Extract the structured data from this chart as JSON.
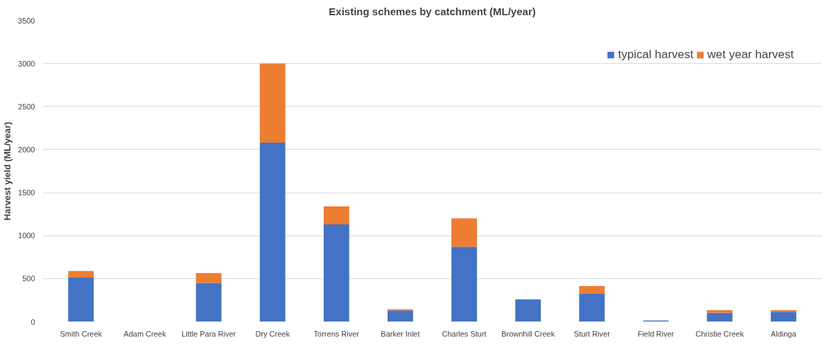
{
  "chart_data": {
    "type": "bar",
    "stacked": true,
    "title": "Existing schemes by catchment (ML/year)",
    "ylabel": "Harvest yield (ML/year)",
    "categories": [
      "Smith Creek",
      "Adam Creek",
      "Little Para River",
      "Dry Creek",
      "Torrens River",
      "Barker Inlet",
      "Charles Sturt",
      "Brownhill Creek",
      "Sturt River",
      "Field River",
      "Christie Creek",
      "Aldinga"
    ],
    "series": [
      {
        "name": "typical harvest",
        "color": "#4472c4",
        "values": [
          510,
          0,
          450,
          2080,
          1130,
          130,
          870,
          260,
          330,
          15,
          105,
          115
        ]
      },
      {
        "name": "wet year harvest",
        "color": "#ed7d31",
        "values": [
          80,
          0,
          115,
          920,
          210,
          15,
          330,
          0,
          85,
          0,
          30,
          20
        ]
      }
    ],
    "ylim": [
      0,
      3500
    ],
    "yticks": [
      0,
      500,
      1000,
      1500,
      2000,
      2500,
      3000,
      3500
    ],
    "grid": "y",
    "legend": "top right"
  }
}
